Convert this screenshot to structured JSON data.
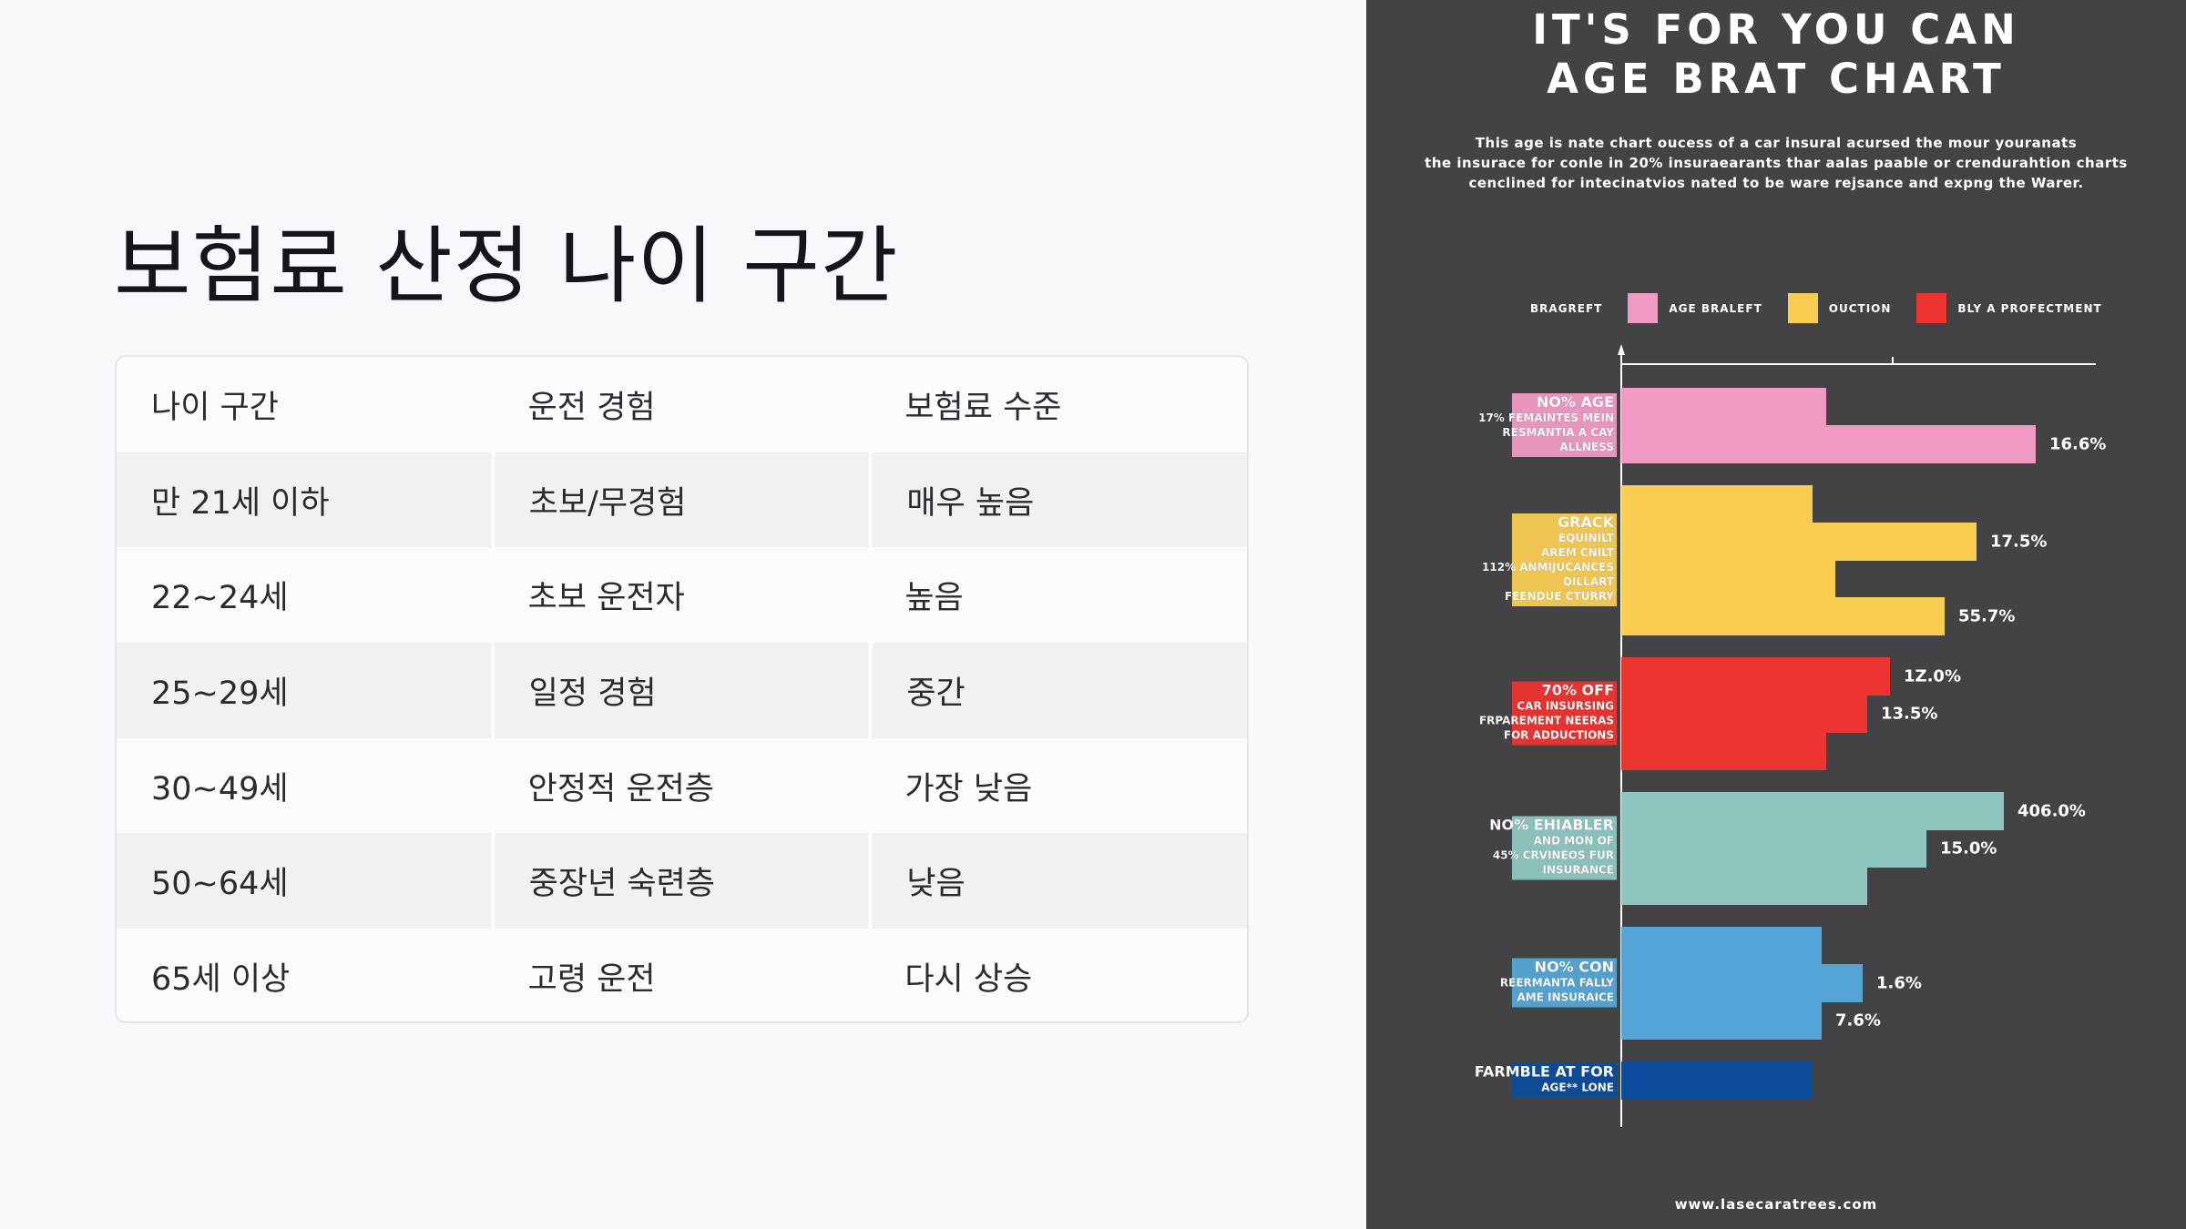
{
  "slide": {
    "title": "보험료 산정 나이 구간",
    "table": {
      "headers": [
        "나이 구간",
        "운전 경험",
        "보험료 수준"
      ],
      "rows": [
        [
          "만 21세 이하",
          "초보/무경험",
          "매우 높음"
        ],
        [
          "22~24세",
          "초보 운전자",
          "높음"
        ],
        [
          "25~29세",
          "일정 경험",
          "중간"
        ],
        [
          "30~49세",
          "안정적 운전층",
          "가장 낮음"
        ],
        [
          "50~64세",
          "중장년 숙련층",
          "낮음"
        ],
        [
          "65세 이상",
          "고령 운전",
          "다시 상승"
        ]
      ]
    }
  },
  "poster": {
    "title_line1": "IT'S FOR YOU CAN",
    "title_line2": "AGE BRAT CHART",
    "desc_line1": "This age is nate chart oucess of a car insural acursed the mour youranats",
    "desc_line2": "the insurace for conle in 20% insuraearants thar aalas paable or crendurahtion charts",
    "desc_line3": "cenclined for intecinatvios nated to be ware rejsance and expng the Warer.",
    "legend": [
      {
        "label": "BRAGREFT",
        "color": ""
      },
      {
        "label": "AGE BRALEFT",
        "color": "#f09ac4"
      },
      {
        "label": "OUCTION",
        "color": "#f9cc52"
      },
      {
        "label": "BLY A PROFECTMENT",
        "color": "#ec3430"
      }
    ],
    "url": "www.lasecaratrees.com"
  },
  "chart_data": {
    "type": "bar",
    "orientation": "horizontal",
    "groups": [
      {
        "color": "#f09ac4",
        "label_lines": [
          "NO% AGE",
          "17% FEMAINTES MEIN",
          "RESMANTIA A CAY",
          "ALLNESS"
        ],
        "bars": [
          {
            "value": 45,
            "label": ""
          },
          {
            "value": 91,
            "label": "16.6%"
          }
        ]
      },
      {
        "color": "#f9cc52",
        "label_lines": [
          "GRACK",
          "EQUINILT",
          "AREM CNILT",
          "112% ANMIJUCANCES",
          "DILLART",
          "FEENDUE CTURRY"
        ],
        "bars": [
          {
            "value": 42,
            "label": ""
          },
          {
            "value": 78,
            "label": "17.5%"
          },
          {
            "value": 47,
            "label": ""
          },
          {
            "value": 71,
            "label": "55.7%"
          }
        ]
      },
      {
        "color": "#ec3430",
        "label_lines": [
          "70% OFF",
          "CAR INSURSING",
          "FRPAREMENT NEERAS",
          "FOR ADDUCTIONS"
        ],
        "bars": [
          {
            "value": 59,
            "label": "1Z.0%"
          },
          {
            "value": 54,
            "label": "13.5%"
          },
          {
            "value": 45,
            "label": ""
          }
        ]
      },
      {
        "color": "#8fc6c0",
        "label_lines": [
          "NO% EHIABLER",
          "AND MON OF",
          "45% CRVINEOS FUR",
          "INSURANCE"
        ],
        "bars": [
          {
            "value": 84,
            "label": "406.0%"
          },
          {
            "value": 67,
            "label": "15.0%"
          },
          {
            "value": 54,
            "label": ""
          }
        ]
      },
      {
        "color": "#55a6d6",
        "label_lines": [
          "NO% CON",
          "REERMANTA FALLY",
          "AME INSURAICE"
        ],
        "bars": [
          {
            "value": 44,
            "label": ""
          },
          {
            "value": 53,
            "label": "1.6%"
          },
          {
            "value": 44,
            "label": "7.6%"
          }
        ]
      },
      {
        "color": "#0c4c9c",
        "label_lines": [
          "FARMBLE AT FOR",
          "AGE** LONE"
        ],
        "bars": [
          {
            "value": 42,
            "label": ""
          }
        ]
      }
    ]
  }
}
